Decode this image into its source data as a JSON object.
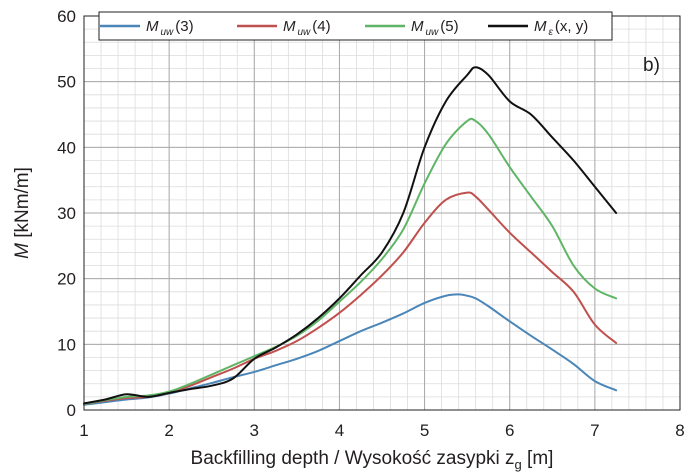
{
  "chart_data": {
    "type": "line",
    "panel_label": "b)",
    "xlabel": "Backfilling depth / Wysokość zasypki z",
    "xlabel_sub": "g",
    "xlabel_unit": " [m]",
    "ylabel_symbol": "M",
    "ylabel_unit": " [kNm/m]",
    "xlim": [
      1,
      8
    ],
    "ylim": [
      0,
      60
    ],
    "x_ticks": [
      "1",
      "2",
      "3",
      "4",
      "5",
      "6",
      "7",
      "8"
    ],
    "y_ticks": [
      "0",
      "10",
      "20",
      "30",
      "40",
      "50",
      "60"
    ],
    "grid": true,
    "legend_position": "top",
    "series": [
      {
        "name": "M_uw(3)",
        "legend_main": "M",
        "legend_sub": "uw",
        "legend_tail": "(3)",
        "color": "#4a86b8",
        "x": [
          1.0,
          1.25,
          1.5,
          1.75,
          2.0,
          2.25,
          2.5,
          2.75,
          3.0,
          3.25,
          3.5,
          3.75,
          4.0,
          4.25,
          4.5,
          4.75,
          5.0,
          5.25,
          5.4,
          5.5,
          5.6,
          5.75,
          6.0,
          6.25,
          6.5,
          6.75,
          7.0,
          7.25
        ],
        "y": [
          0.8,
          1.2,
          1.6,
          1.9,
          2.5,
          3.3,
          4.1,
          5.0,
          5.8,
          6.8,
          7.8,
          9.0,
          10.5,
          12.0,
          13.3,
          14.7,
          16.3,
          17.4,
          17.6,
          17.4,
          17.0,
          15.8,
          13.5,
          11.3,
          9.2,
          7.0,
          4.4,
          3.0
        ]
      },
      {
        "name": "M_uw(4)",
        "legend_main": "M",
        "legend_sub": "uw",
        "legend_tail": "(4)",
        "color": "#c0504d",
        "x": [
          1.0,
          1.25,
          1.5,
          1.75,
          2.0,
          2.25,
          2.5,
          2.75,
          3.0,
          3.25,
          3.5,
          3.75,
          4.0,
          4.25,
          4.5,
          4.75,
          5.0,
          5.25,
          5.5,
          5.6,
          5.75,
          6.0,
          6.25,
          6.5,
          6.75,
          7.0,
          7.25
        ],
        "y": [
          0.9,
          1.4,
          1.8,
          2.0,
          2.6,
          3.7,
          5.0,
          6.3,
          7.8,
          9.0,
          10.5,
          12.5,
          14.8,
          17.5,
          20.5,
          24.0,
          28.5,
          32.0,
          33.1,
          32.5,
          30.5,
          27.0,
          24.0,
          21.0,
          18.0,
          13.0,
          10.2
        ]
      },
      {
        "name": "M_uw(5)",
        "legend_main": "M",
        "legend_sub": "uw",
        "legend_tail": "(5)",
        "color": "#5fb565",
        "x": [
          1.0,
          1.25,
          1.5,
          1.75,
          2.0,
          2.25,
          2.5,
          2.75,
          3.0,
          3.25,
          3.5,
          3.75,
          4.0,
          4.25,
          4.5,
          4.75,
          5.0,
          5.25,
          5.5,
          5.6,
          5.75,
          6.0,
          6.25,
          6.5,
          6.75,
          7.0,
          7.25
        ],
        "y": [
          0.9,
          1.5,
          2.0,
          2.2,
          2.8,
          4.0,
          5.4,
          6.8,
          8.2,
          9.6,
          11.3,
          13.6,
          16.5,
          19.5,
          23.0,
          27.5,
          34.5,
          40.5,
          44.0,
          44.0,
          42.0,
          37.0,
          32.5,
          28.0,
          22.0,
          18.5,
          17.0
        ]
      },
      {
        "name": "M_ε(x,y)",
        "legend_main": "M",
        "legend_sub": "ε",
        "legend_tail": "(x, y)",
        "color": "#111111",
        "x": [
          1.0,
          1.25,
          1.5,
          1.75,
          2.0,
          2.25,
          2.5,
          2.75,
          3.0,
          3.25,
          3.5,
          3.75,
          4.0,
          4.25,
          4.5,
          4.75,
          5.0,
          5.25,
          5.5,
          5.6,
          5.75,
          6.0,
          6.25,
          6.5,
          6.75,
          7.0,
          7.25
        ],
        "y": [
          1.0,
          1.6,
          2.4,
          2.0,
          2.6,
          3.2,
          3.7,
          4.8,
          7.8,
          9.5,
          11.5,
          14.0,
          17.0,
          20.5,
          24.0,
          30.0,
          40.0,
          47.0,
          51.0,
          52.2,
          51.0,
          47.0,
          45.0,
          41.5,
          38.0,
          34.0,
          30.0
        ]
      }
    ]
  }
}
